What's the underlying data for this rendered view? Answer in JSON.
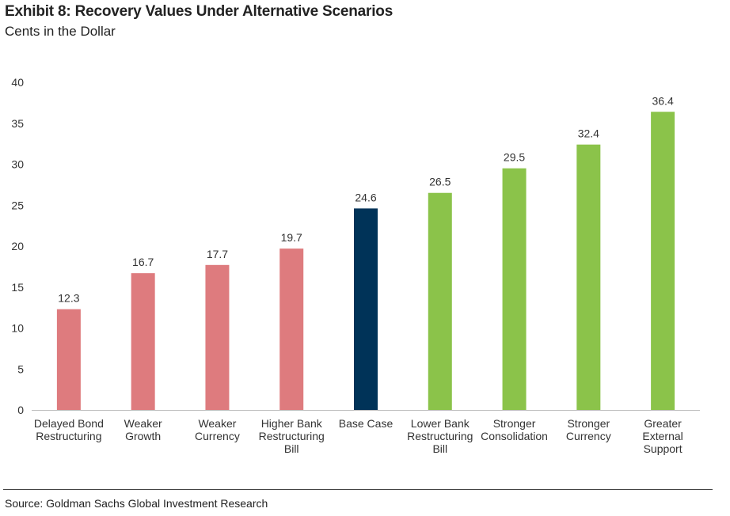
{
  "header": {
    "title": "Exhibit 8: Recovery Values Under Alternative Scenarios",
    "subtitle": "Cents in the Dollar"
  },
  "footer": {
    "source": "Source: Goldman Sachs Global Investment Research"
  },
  "chart_data": {
    "type": "bar",
    "title": "Exhibit 8: Recovery Values Under Alternative Scenarios",
    "subtitle": "Cents in the Dollar",
    "xlabel": "",
    "ylabel": "",
    "ylim": [
      0,
      40
    ],
    "yticks": [
      "0",
      "5",
      "10",
      "15",
      "20",
      "25",
      "30",
      "35",
      "40"
    ],
    "grid": false,
    "categories": [
      [
        "Delayed Bond",
        "Restructuring"
      ],
      [
        "Weaker",
        "Growth"
      ],
      [
        "Weaker",
        "Currency"
      ],
      [
        "Higher Bank",
        "Restructuring",
        "Bill"
      ],
      [
        "Base Case"
      ],
      [
        "Lower Bank",
        "Restructuring",
        "Bill"
      ],
      [
        "Stronger",
        "Consolidation"
      ],
      [
        "Stronger",
        "Currency"
      ],
      [
        "Greater",
        "External",
        "Support"
      ]
    ],
    "values": [
      12.3,
      16.7,
      17.7,
      19.7,
      24.6,
      26.5,
      29.5,
      32.4,
      36.4
    ],
    "labels": [
      "12.3",
      "16.7",
      "17.7",
      "19.7",
      "24.6",
      "26.5",
      "29.5",
      "32.4",
      "36.4"
    ],
    "colors": [
      "#de7b7e",
      "#de7b7e",
      "#de7b7e",
      "#de7b7e",
      "#003358",
      "#8bc34a",
      "#8bc34a",
      "#8bc34a",
      "#8bc34a"
    ],
    "axis_color": "#bfbfbf"
  }
}
